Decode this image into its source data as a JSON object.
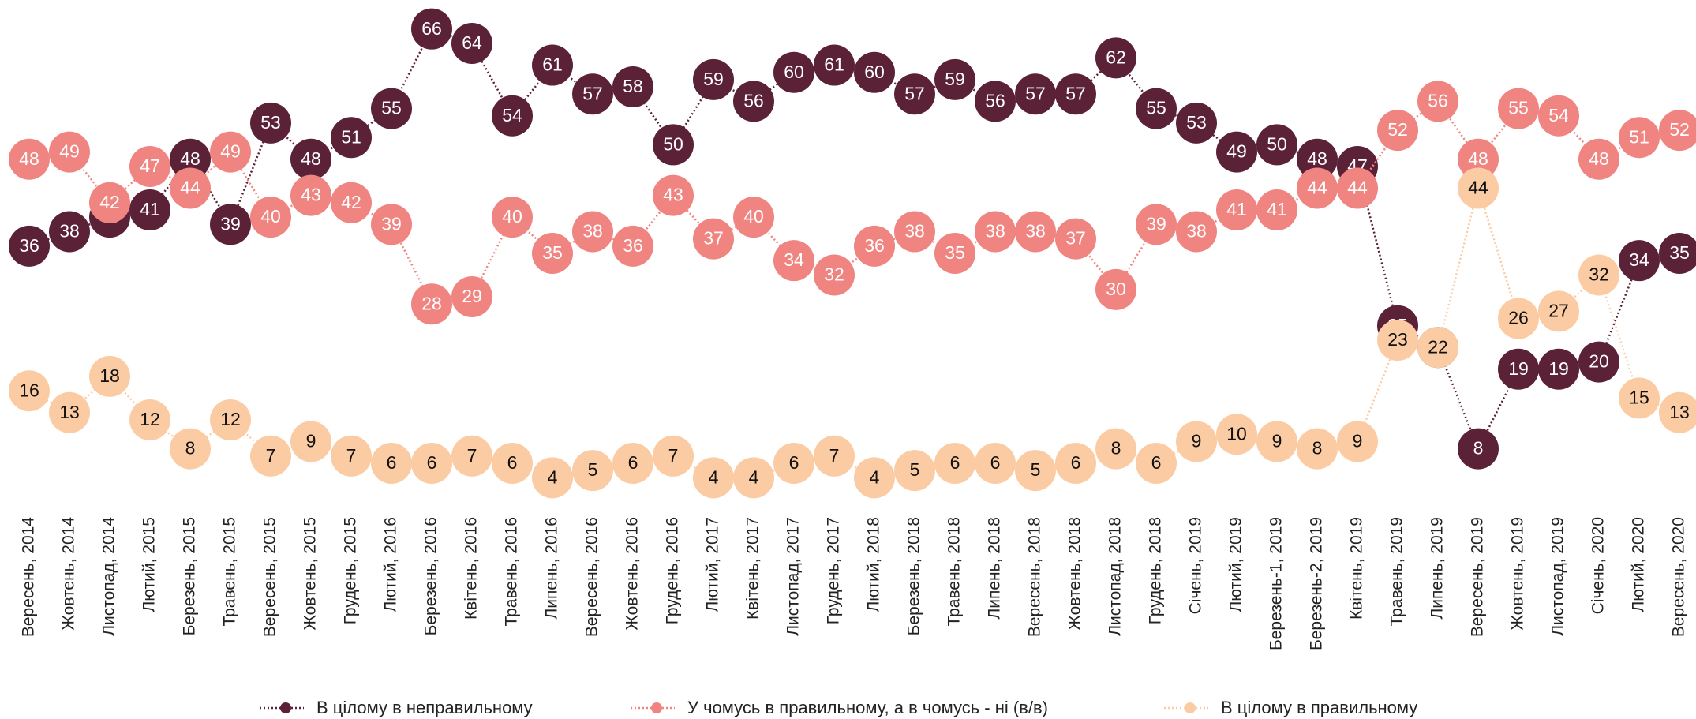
{
  "chart_data": {
    "type": "line",
    "categories": [
      "Вересень, 2014",
      "Жовтень, 2014",
      "Листопад, 2014",
      "Лютий, 2015",
      "Березень, 2015",
      "Травень, 2015",
      "Вересень, 2015",
      "Жовтень, 2015",
      "Грудень, 2015",
      "Лютий, 2016",
      "Березень, 2016",
      "Квітень, 2016",
      "Травень, 2016",
      "Липень, 2016",
      "Вересень, 2016",
      "Жовтень, 2016",
      "Грудень, 2016",
      "Лютий, 2017",
      "Квітень, 2017",
      "Листопад, 2017",
      "Грудень, 2017",
      "Лютий, 2018",
      "Березень, 2018",
      "Травень, 2018",
      "Липень, 2018",
      "Вересень, 2018",
      "Жовтень, 2018",
      "Листопад, 2018",
      "Грудень, 2018",
      "Січень, 2019",
      "Лютий, 2019",
      "Березень-1, 2019",
      "Березень-2, 2019",
      "Квітень, 2019",
      "Травень, 2019",
      "Липень, 2019",
      "Вересень, 2019",
      "Жовтень, 2019",
      "Листопад, 2019",
      "Січень, 2020",
      "Лютий, 2020",
      "Вересень, 2020"
    ],
    "series": [
      {
        "name": "В цілому в неправильному",
        "color": "#5a2137",
        "label_color": "#ffffff",
        "values": [
          36,
          38,
          40,
          41,
          48,
          39,
          53,
          48,
          51,
          55,
          66,
          64,
          54,
          61,
          57,
          58,
          50,
          59,
          56,
          60,
          61,
          60,
          57,
          59,
          56,
          57,
          57,
          62,
          55,
          53,
          49,
          50,
          48,
          47,
          25,
          22,
          8,
          19,
          19,
          20,
          34,
          35
        ]
      },
      {
        "name": "У чомусь в правильному, а в чомусь - ні (в/в)",
        "color": "#f08481",
        "label_color": "#ffffff",
        "values": [
          48,
          49,
          42,
          47,
          44,
          49,
          40,
          43,
          42,
          39,
          28,
          29,
          40,
          35,
          38,
          36,
          43,
          37,
          40,
          34,
          32,
          36,
          38,
          35,
          38,
          38,
          37,
          30,
          39,
          38,
          41,
          41,
          44,
          44,
          52,
          56,
          48,
          55,
          54,
          48,
          51,
          52
        ]
      },
      {
        "name": "В цілому в правильному",
        "color": "#fbcca4",
        "label_color": "#111111",
        "values": [
          16,
          13,
          18,
          12,
          8,
          12,
          7,
          9,
          7,
          6,
          6,
          7,
          6,
          4,
          5,
          6,
          7,
          4,
          4,
          6,
          7,
          4,
          5,
          6,
          6,
          5,
          6,
          8,
          6,
          9,
          10,
          9,
          8,
          9,
          23,
          22,
          44,
          26,
          27,
          32,
          15,
          13
        ]
      }
    ],
    "ylim": [
      0,
      70
    ]
  }
}
